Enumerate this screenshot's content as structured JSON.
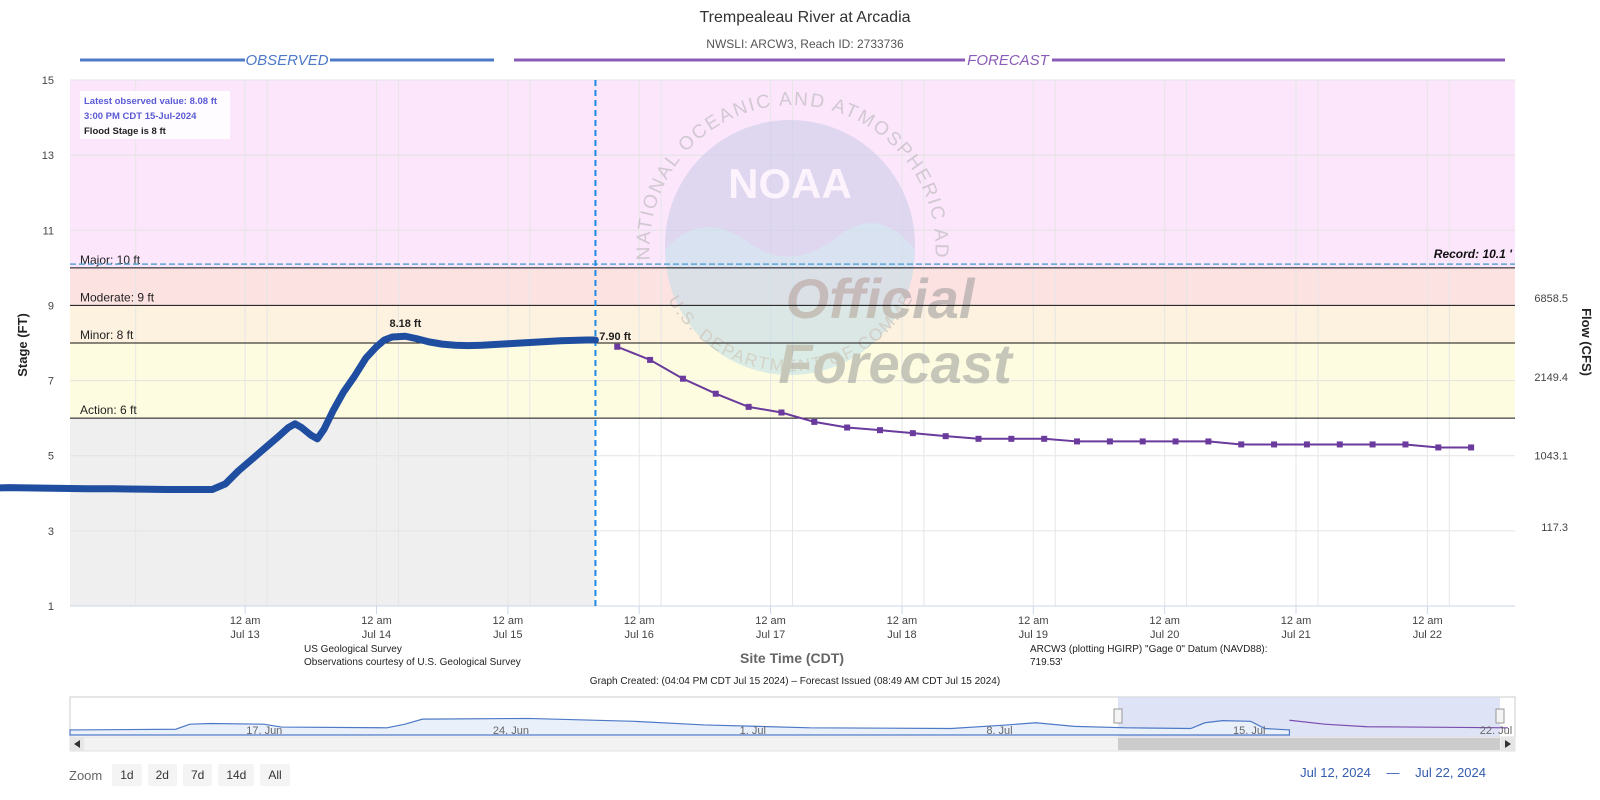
{
  "title": "Trempealeau River at Arcadia",
  "subtitle": "NWSLI: ARCW3, Reach ID: 2733736",
  "observed_label": "OBSERVED",
  "forecast_label": "FORECAST",
  "info_box": {
    "latest": "Latest observed value: 8.08 ft",
    "time": "3:00 PM CDT 15-Jul-2024",
    "flood_stage": "Flood Stage is 8 ft"
  },
  "watermark": {
    "noaa": "NOAA",
    "ring": "NATIONAL OCEANIC AND ATMOSPHERIC ADMINISTRATION",
    "dept": "U.S. DEPARTMENT OF COMMERCE",
    "line1": "Official",
    "line2": "Forecast"
  },
  "y_axis_label": "Stage (FT)",
  "y2_axis_label": "Flow (CFS)",
  "x_axis_label": "Site Time (CDT)",
  "credit_left": [
    "US Geological Survey",
    "Observations courtesy of U.S. Geological Survey"
  ],
  "credit_right": [
    "ARCW3 (plotting HGIRP) \"Gage 0\" Datum (NAVD88):",
    "719.53'"
  ],
  "graph_created": "Graph Created: (04:04 PM CDT Jul 15 2024) – Forecast Issued (08:49 AM CDT Jul 15 2024)",
  "zoom": {
    "label": "Zoom",
    "buttons": [
      "1d",
      "2d",
      "7d",
      "14d",
      "All"
    ]
  },
  "range": {
    "from": "Jul 12, 2024",
    "sep": "—",
    "to": "Jul 22, 2024"
  },
  "navigator_labels": [
    {
      "text": "17. Jun",
      "day": -25
    },
    {
      "text": "24. Jun",
      "day": -18
    },
    {
      "text": "1. Jul",
      "day": -11
    },
    {
      "text": "8. Jul",
      "day": -4
    },
    {
      "text": "15. Jul",
      "day": 3
    },
    {
      "text": "22. Jul",
      "day": 10
    }
  ],
  "colors": {
    "observed": "#1f4ea1",
    "forecast": "#6a3a9c",
    "record": "#5aa7d6",
    "major_zone": "#fbe6fb",
    "moderate_zone": "#fde2e2",
    "minor_zone": "#fdf1df",
    "action_zone": "#fdfce0",
    "observed_bg": "#efefef"
  },
  "chart_data": {
    "type": "line",
    "ylim": [
      1,
      15
    ],
    "yticks": [
      "1",
      "3",
      "5",
      "7",
      "9",
      "11",
      "13",
      "15"
    ],
    "flow_ticks": [
      {
        "stage": 3.1,
        "label": "117.3"
      },
      {
        "stage": 5.0,
        "label": "1043.1"
      },
      {
        "stage": 7.1,
        "label": "2149.4"
      },
      {
        "stage": 9.2,
        "label": "6858.5"
      }
    ],
    "x_ticks": [
      {
        "day": 1,
        "line1": "12 am",
        "line2": "Jul 13"
      },
      {
        "day": 2,
        "line1": "12 am",
        "line2": "Jul 14"
      },
      {
        "day": 3,
        "line1": "12 am",
        "line2": "Jul 15"
      },
      {
        "day": 4,
        "line1": "12 am",
        "line2": "Jul 16"
      },
      {
        "day": 5,
        "line1": "12 am",
        "line2": "Jul 17"
      },
      {
        "day": 6,
        "line1": "12 am",
        "line2": "Jul 18"
      },
      {
        "day": 7,
        "line1": "12 am",
        "line2": "Jul 19"
      },
      {
        "day": 8,
        "line1": "12 am",
        "line2": "Jul 20"
      },
      {
        "day": 9,
        "line1": "12 am",
        "line2": "Jul 21"
      },
      {
        "day": 10,
        "line1": "12 am",
        "line2": "Jul 22"
      }
    ],
    "thresholds": [
      {
        "name": "Major",
        "label": "Major: 10 ft",
        "value": 10
      },
      {
        "name": "Moderate",
        "label": "Moderate: 9 ft",
        "value": 9
      },
      {
        "name": "Minor",
        "label": "Minor: 8 ft",
        "value": 8
      },
      {
        "name": "Action",
        "label": "Action: 6 ft",
        "value": 6
      }
    ],
    "record": {
      "label": "Record: 10.1 '",
      "value": 10.1
    },
    "observed_end_day": 3.667,
    "observed": [
      [
        0.0,
        4.13
      ],
      [
        0.2,
        4.15
      ],
      [
        0.4,
        4.14
      ],
      [
        0.6,
        4.13
      ],
      [
        0.8,
        4.12
      ],
      [
        1.0,
        4.12
      ],
      [
        1.2,
        4.11
      ],
      [
        1.4,
        4.1
      ],
      [
        1.6,
        4.1
      ],
      [
        1.75,
        4.1
      ],
      [
        1.85,
        4.25
      ],
      [
        1.95,
        4.6
      ],
      [
        2.05,
        4.9
      ],
      [
        2.15,
        5.2
      ],
      [
        2.25,
        5.5
      ],
      [
        2.33,
        5.75
      ],
      [
        2.38,
        5.85
      ],
      [
        2.43,
        5.75
      ],
      [
        2.5,
        5.55
      ],
      [
        2.55,
        5.45
      ],
      [
        2.6,
        5.7
      ],
      [
        2.67,
        6.2
      ],
      [
        2.75,
        6.7
      ],
      [
        2.83,
        7.1
      ],
      [
        2.92,
        7.6
      ],
      [
        3.0,
        7.9
      ],
      [
        3.06,
        8.08
      ],
      [
        3.12,
        8.16
      ],
      [
        3.22,
        8.18
      ],
      [
        3.3,
        8.12
      ],
      [
        3.4,
        8.03
      ],
      [
        3.5,
        7.97
      ],
      [
        3.6,
        7.94
      ],
      [
        3.7,
        7.93
      ],
      [
        3.8,
        7.94
      ],
      [
        3.9,
        7.96
      ],
      [
        4.0,
        7.98
      ],
      [
        4.1,
        8.0
      ],
      [
        4.2,
        8.02
      ],
      [
        4.3,
        8.04
      ],
      [
        4.4,
        8.06
      ],
      [
        4.5,
        8.07
      ],
      [
        4.6,
        8.08
      ],
      [
        4.667,
        8.08
      ]
    ],
    "observed_shift": -1,
    "forecast": [
      [
        3.833,
        7.9
      ],
      [
        4.083,
        7.55
      ],
      [
        4.333,
        7.05
      ],
      [
        4.583,
        6.65
      ],
      [
        4.833,
        6.3
      ],
      [
        5.083,
        6.15
      ],
      [
        5.333,
        5.9
      ],
      [
        5.583,
        5.75
      ],
      [
        5.833,
        5.68
      ],
      [
        6.083,
        5.6
      ],
      [
        6.333,
        5.52
      ],
      [
        6.583,
        5.45
      ],
      [
        6.833,
        5.45
      ],
      [
        7.083,
        5.45
      ],
      [
        7.333,
        5.38
      ],
      [
        7.583,
        5.38
      ],
      [
        7.833,
        5.38
      ],
      [
        8.083,
        5.38
      ],
      [
        8.333,
        5.38
      ],
      [
        8.583,
        5.3
      ],
      [
        8.833,
        5.3
      ],
      [
        9.083,
        5.3
      ],
      [
        9.333,
        5.3
      ],
      [
        9.583,
        5.3
      ],
      [
        9.833,
        5.3
      ],
      [
        10.083,
        5.22
      ],
      [
        10.333,
        5.22
      ]
    ],
    "forecast_first_label": "7.90 ft",
    "peak_label": "8.18 ft",
    "peak_point": [
      3.22,
      8.18
    ],
    "xlim_days": [
      -0.333,
      10.667
    ]
  }
}
